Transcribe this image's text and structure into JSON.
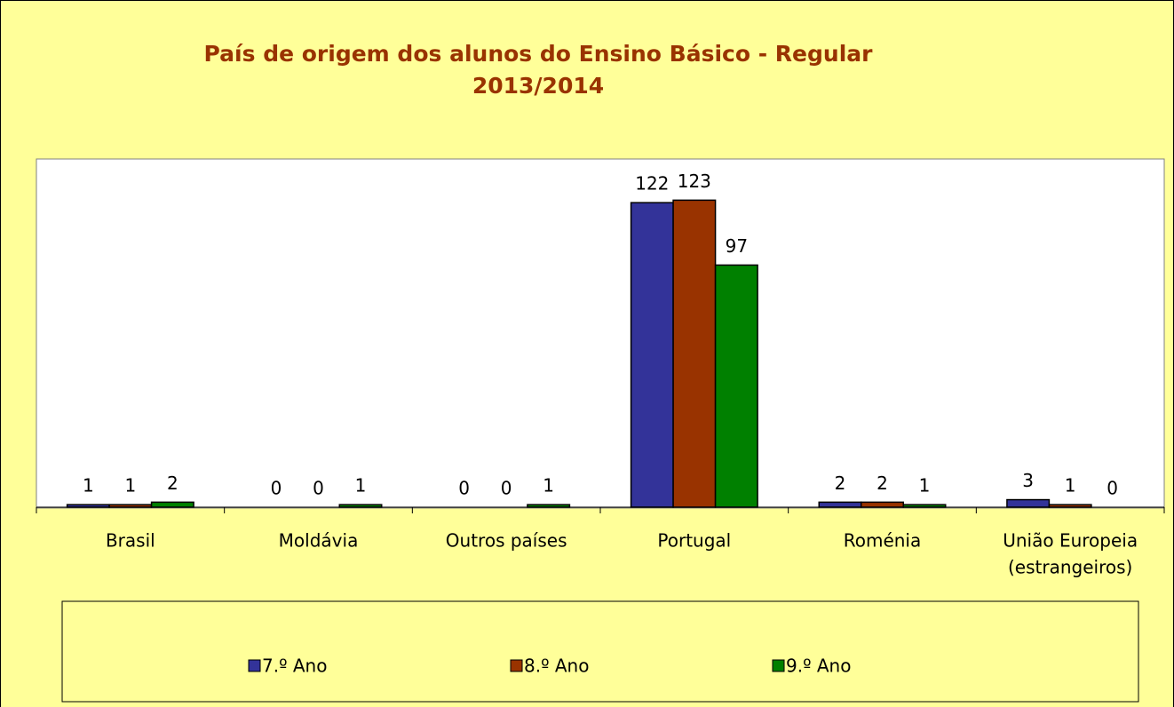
{
  "chart_data": {
    "type": "bar",
    "title": [
      "País de origem dos alunos do Ensino Básico - Regular",
      "2013/2014"
    ],
    "categories": [
      [
        "Brasil"
      ],
      [
        "Moldávia"
      ],
      [
        "Outros países"
      ],
      [
        "Portugal"
      ],
      [
        "Roménia"
      ],
      [
        "União Europeia",
        "(estrangeiros)"
      ]
    ],
    "series": [
      {
        "name": "7.º Ano",
        "color": "#333399",
        "values": [
          1,
          0,
          0,
          122,
          2,
          3
        ]
      },
      {
        "name": "8.º Ano",
        "color": "#993300",
        "values": [
          1,
          0,
          0,
          123,
          2,
          1
        ]
      },
      {
        "name": "9.º Ano",
        "color": "#008000",
        "values": [
          2,
          1,
          1,
          97,
          1,
          0
        ]
      }
    ],
    "ylim": [
      0,
      139.5
    ],
    "legend": "bottom"
  }
}
